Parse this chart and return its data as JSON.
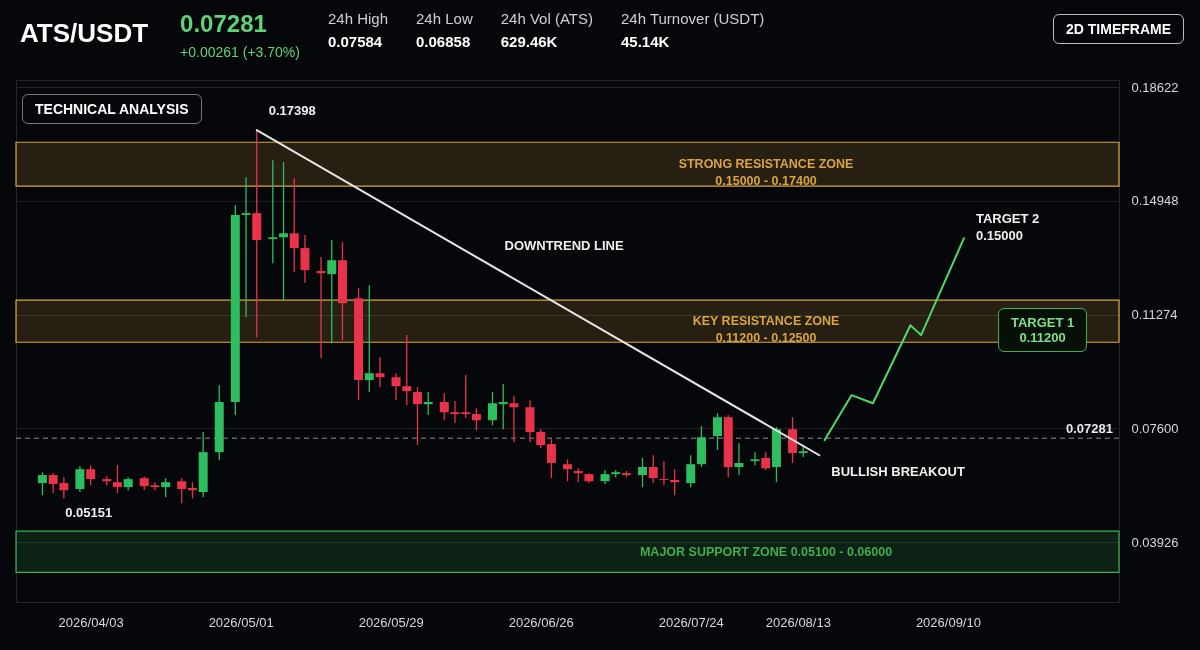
{
  "chart_data": {
    "type": "candlestick",
    "title": "ATS/USDT",
    "annotations": [
      "0.07281",
      "+0.00261 (+3.70%)",
      "24h High",
      "0.07584",
      "24h Low",
      "0.06858",
      "24h Vol (ATS)",
      "629.46K",
      "24h Turnover (USDT)",
      "45.14K",
      "2D TIMEFRAME",
      "TECHNICAL ANALYSIS",
      "TARGET 1\n0.11200",
      {
        "text": "0.17398",
        "x": "2026-05-04",
        "y": 0.1723
      },
      {
        "text": "0.05151",
        "x": "2026-03-27",
        "y": 0.0551
      },
      {
        "text": "DOWNTREND LINE",
        "x": "2026-06-17",
        "y": 0.1287
      },
      {
        "text": "TARGET 2\n0.15000",
        "x": "2026-09-13",
        "y": 0.1374
      },
      {
        "text": "BULLISH BREAKOUT",
        "x": "2026-08-17",
        "y": 0.0683
      }
    ],
    "x": [
      "2026-03-25",
      "2026-03-27",
      "2026-03-29",
      "2026-04-01",
      "2026-04-03",
      "2026-04-06",
      "2026-04-08",
      "2026-04-10",
      "2026-04-13",
      "2026-04-15",
      "2026-04-17",
      "2026-04-20",
      "2026-04-22",
      "2026-04-24",
      "2026-04-27",
      "2026-04-30",
      "2026-05-02",
      "2026-05-04",
      "2026-05-07",
      "2026-05-09",
      "2026-05-11",
      "2026-05-13",
      "2026-05-16",
      "2026-05-18",
      "2026-05-20",
      "2026-05-23",
      "2026-05-25",
      "2026-05-27",
      "2026-05-30",
      "2026-06-01",
      "2026-06-03",
      "2026-06-05",
      "2026-06-08",
      "2026-06-10",
      "2026-06-12",
      "2026-06-14",
      "2026-06-17",
      "2026-06-19",
      "2026-06-21",
      "2026-06-24",
      "2026-06-26",
      "2026-06-28",
      "2026-07-01",
      "2026-07-03",
      "2026-07-05",
      "2026-07-08",
      "2026-07-10",
      "2026-07-12",
      "2026-07-15",
      "2026-07-17",
      "2026-07-19",
      "2026-07-21",
      "2026-07-24",
      "2026-07-26",
      "2026-07-29",
      "2026-07-31",
      "2026-08-02",
      "2026-08-05",
      "2026-08-07",
      "2026-08-09",
      "2026-08-12",
      "2026-08-14"
    ],
    "ohlc": [
      [
        0.0583,
        0.0618,
        0.0544,
        0.0609
      ],
      [
        0.0609,
        0.0615,
        0.0551,
        0.058
      ],
      [
        0.0583,
        0.0602,
        0.0534,
        0.056
      ],
      [
        0.0564,
        0.0638,
        0.0554,
        0.0628
      ],
      [
        0.0628,
        0.0641,
        0.0576,
        0.0596
      ],
      [
        0.0596,
        0.0605,
        0.0576,
        0.0589
      ],
      [
        0.0586,
        0.0641,
        0.0551,
        0.057
      ],
      [
        0.057,
        0.0602,
        0.056,
        0.0596
      ],
      [
        0.0599,
        0.0605,
        0.056,
        0.0573
      ],
      [
        0.0576,
        0.0586,
        0.056,
        0.057
      ],
      [
        0.057,
        0.0599,
        0.0538,
        0.0586
      ],
      [
        0.0589,
        0.0599,
        0.0518,
        0.0564
      ],
      [
        0.0567,
        0.0586,
        0.0534,
        0.056
      ],
      [
        0.0554,
        0.0748,
        0.0538,
        0.0683
      ],
      [
        0.0683,
        0.0899,
        0.0657,
        0.0845
      ],
      [
        0.0845,
        0.1481,
        0.0803,
        0.1449
      ],
      [
        0.1449,
        0.1571,
        0.1119,
        0.1455
      ],
      [
        0.1455,
        0.1723,
        0.1054,
        0.1368
      ],
      [
        0.1371,
        0.1626,
        0.1293,
        0.1377
      ],
      [
        0.1377,
        0.162,
        0.1174,
        0.139
      ],
      [
        0.139,
        0.1568,
        0.1264,
        0.1342
      ],
      [
        0.1342,
        0.1384,
        0.1229,
        0.1271
      ],
      [
        0.1268,
        0.1313,
        0.0987,
        0.1261
      ],
      [
        0.1258,
        0.1368,
        0.1035,
        0.1303
      ],
      [
        0.1303,
        0.1361,
        0.1045,
        0.1164
      ],
      [
        0.118,
        0.1213,
        0.0851,
        0.0916
      ],
      [
        0.0916,
        0.1222,
        0.0877,
        0.0938
      ],
      [
        0.0938,
        0.099,
        0.0893,
        0.0925
      ],
      [
        0.0925,
        0.0938,
        0.0851,
        0.0896
      ],
      [
        0.0896,
        0.1061,
        0.0835,
        0.088
      ],
      [
        0.0877,
        0.0893,
        0.0706,
        0.0838
      ],
      [
        0.0838,
        0.0877,
        0.0803,
        0.0845
      ],
      [
        0.0845,
        0.0874,
        0.0786,
        0.0812
      ],
      [
        0.0812,
        0.0848,
        0.0777,
        0.0806
      ],
      [
        0.0812,
        0.0932,
        0.0793,
        0.0806
      ],
      [
        0.0806,
        0.0825,
        0.0754,
        0.0786
      ],
      [
        0.0786,
        0.0877,
        0.077,
        0.0841
      ],
      [
        0.0838,
        0.0903,
        0.0757,
        0.0845
      ],
      [
        0.0841,
        0.0864,
        0.0715,
        0.0828
      ],
      [
        0.0828,
        0.0851,
        0.0715,
        0.0748
      ],
      [
        0.0748,
        0.0757,
        0.0696,
        0.0706
      ],
      [
        0.0709,
        0.0725,
        0.0599,
        0.0648
      ],
      [
        0.0644,
        0.066,
        0.0589,
        0.0628
      ],
      [
        0.0622,
        0.0631,
        0.0586,
        0.0615
      ],
      [
        0.0612,
        0.0615,
        0.0583,
        0.0589
      ],
      [
        0.0589,
        0.0625,
        0.058,
        0.0612
      ],
      [
        0.0612,
        0.0625,
        0.0602,
        0.0618
      ],
      [
        0.0615,
        0.0622,
        0.0602,
        0.0609
      ],
      [
        0.0609,
        0.0664,
        0.057,
        0.0635
      ],
      [
        0.0635,
        0.0673,
        0.0583,
        0.0599
      ],
      [
        0.0596,
        0.0654,
        0.0576,
        0.0593
      ],
      [
        0.0593,
        0.0628,
        0.0544,
        0.0586
      ],
      [
        0.0583,
        0.0673,
        0.057,
        0.0644
      ],
      [
        0.0644,
        0.0767,
        0.0635,
        0.0731
      ],
      [
        0.0735,
        0.0809,
        0.069,
        0.0796
      ],
      [
        0.0796,
        0.0803,
        0.0602,
        0.0635
      ],
      [
        0.0635,
        0.0712,
        0.0609,
        0.0648
      ],
      [
        0.0654,
        0.0683,
        0.0641,
        0.066
      ],
      [
        0.0664,
        0.0683,
        0.0625,
        0.0631
      ],
      [
        0.0635,
        0.0764,
        0.0586,
        0.0757
      ],
      [
        0.0757,
        0.0796,
        0.0648,
        0.068
      ],
      [
        0.068,
        0.0706,
        0.0667,
        0.0686
      ]
    ],
    "colors": [
      "#2ebd5f",
      "#e8334a",
      "#e8334a",
      "#2ebd5f",
      "#e8334a",
      "#e8334a",
      "#e8334a",
      "#2ebd5f",
      "#e8334a",
      "#e8334a",
      "#2ebd5f",
      "#e8334a",
      "#e8334a",
      "#2ebd5f",
      "#2ebd5f",
      "#2ebd5f",
      "#2ebd5f",
      "#e8334a",
      "#2ebd5f",
      "#2ebd5f",
      "#e8334a",
      "#e8334a",
      "#e8334a",
      "#2ebd5f",
      "#e8334a",
      "#e8334a",
      "#2ebd5f",
      "#e8334a",
      "#e8334a",
      "#e8334a",
      "#e8334a",
      "#2ebd5f",
      "#e8334a",
      "#e8334a",
      "#e8334a",
      "#e8334a",
      "#2ebd5f",
      "#2ebd5f",
      "#e8334a",
      "#e8334a",
      "#e8334a",
      "#e8334a",
      "#e8334a",
      "#e8334a",
      "#e8334a",
      "#2ebd5f",
      "#2ebd5f",
      "#e8334a",
      "#2ebd5f",
      "#e8334a",
      "#e8334a",
      "#e8334a",
      "#2ebd5f",
      "#2ebd5f",
      "#2ebd5f",
      "#e8334a",
      "#2ebd5f",
      "#2ebd5f",
      "#e8334a",
      "#2ebd5f",
      "#e8334a",
      "#2ebd5f"
    ],
    "series": [
      {
        "type": "line",
        "color": "#e6e6e6",
        "x": [
          "2026-05-04",
          "2026-08-17"
        ],
        "values": [
          0.1723,
          0.0673
        ]
      },
      {
        "type": "line",
        "color": "#4cd964",
        "x": [
          "2026-08-18",
          "2026-08-23",
          "2026-08-27",
          "2026-09-03",
          "2026-09-05",
          "2026-09-13"
        ],
        "values": [
          0.0722,
          0.0867,
          0.0841,
          0.1093,
          0.1061,
          0.1374
        ]
      }
    ],
    "bands": [
      {
        "axis": "y",
        "from": 0.1542,
        "to": 0.1684,
        "label": "STRONG RESISTANCE ZONE\n0.15000 - 0.17400",
        "color": "#d9a441"
      },
      {
        "axis": "y",
        "from": 0.1038,
        "to": 0.1174,
        "label": "KEY RESISTANCE ZONE\n0.11200 - 0.12500",
        "color": "#d9a441"
      },
      {
        "axis": "y",
        "from": 0.0295,
        "to": 0.0428,
        "label": "MAJOR SUPPORT ZONE     0.05100 - 0.06000",
        "color": "#3fae4f"
      }
    ],
    "ref_lines": [
      {
        "axis": "y",
        "value": 0.07281,
        "label": "0.07281",
        "line_style": "dashed",
        "color": "#8a8f96"
      }
    ],
    "xlim": [
      "2026-03-21",
      "2026-10-11"
    ],
    "xticks": [
      {
        "value": "2026-04-03",
        "label": "2026/04/03"
      },
      {
        "value": "2026-05-01",
        "label": "2026/05/01"
      },
      {
        "value": "2026-05-29",
        "label": "2026/05/29"
      },
      {
        "value": "2026-06-26",
        "label": "2026/06/26"
      },
      {
        "value": "2026-07-24",
        "label": "2026/07/24"
      },
      {
        "value": "2026-08-13",
        "label": "2026/08/13"
      },
      {
        "value": "2026-09-10",
        "label": "2026/09/10"
      }
    ],
    "ylim": [
      0.0199,
      0.1885
    ],
    "yticks": [
      0.03926,
      {
        "value": 0.076,
        "label": "0.07600"
      },
      0.11274,
      0.14948,
      0.18622
    ],
    "grid": "y"
  }
}
